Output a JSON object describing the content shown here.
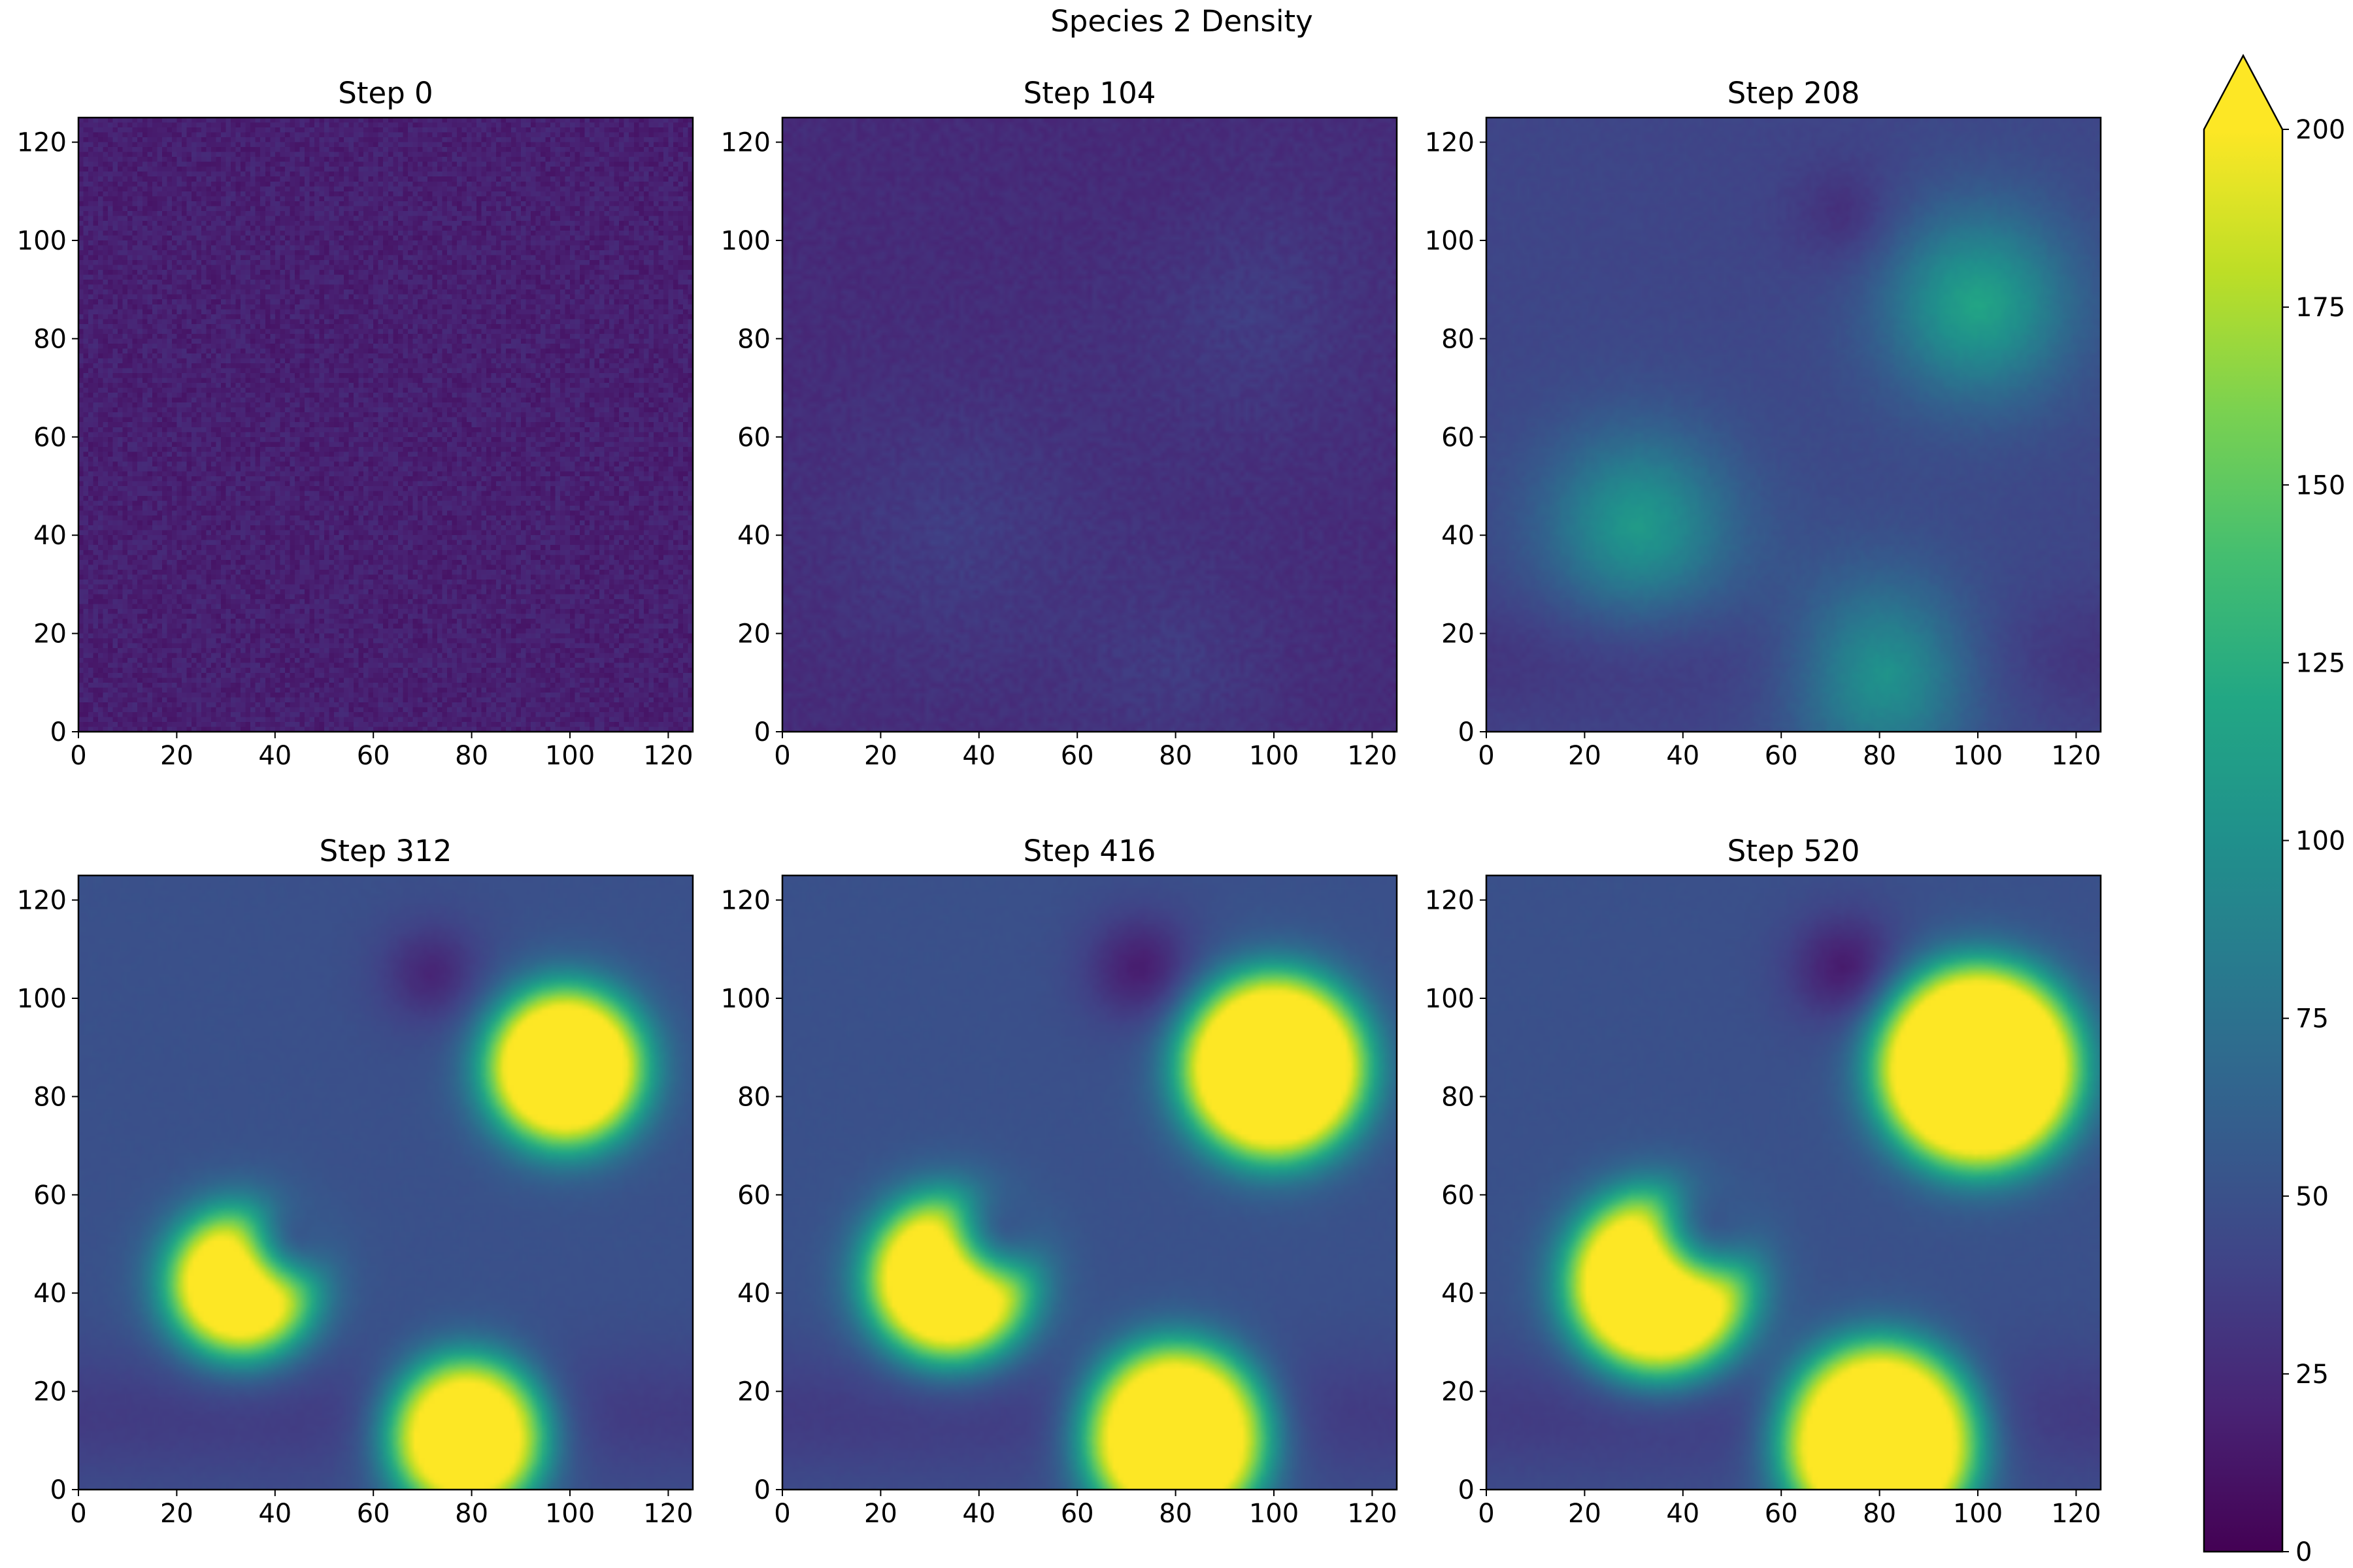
{
  "chart_data": {
    "type": "heatmap",
    "title": "Species 2 Density",
    "colormap": "viridis",
    "colorbar": {
      "min": 0,
      "max": 200,
      "ticks": [
        0,
        25,
        50,
        75,
        100,
        125,
        150,
        175,
        200
      ],
      "extend": "max"
    },
    "grid": false,
    "x_ticks": [
      0,
      20,
      40,
      60,
      80,
      100,
      120
    ],
    "y_ticks": [
      0,
      20,
      40,
      60,
      80,
      100,
      120
    ],
    "xlim": [
      0,
      125
    ],
    "ylim": [
      0,
      125
    ],
    "panels": [
      {
        "title": "Step 0",
        "background": 18,
        "noise": 7,
        "blobs": []
      },
      {
        "title": "Step 104",
        "background": 25,
        "noise": 4,
        "blobs": [
          {
            "cx": 35,
            "cy": 40,
            "r": 16,
            "peak": 40,
            "soft": 12
          },
          {
            "cx": 95,
            "cy": 85,
            "r": 14,
            "peak": 40,
            "soft": 12
          },
          {
            "cx": 80,
            "cy": 12,
            "r": 12,
            "peak": 38,
            "soft": 10
          },
          {
            "cx": 75,
            "cy": 105,
            "r": 10,
            "peak": 22,
            "soft": 8
          }
        ]
      },
      {
        "title": "Step 208",
        "background": 42,
        "noise": 2,
        "bottom_band": 28,
        "blobs": [
          {
            "cx": 100,
            "cy": 87,
            "r": 13,
            "peak": 130,
            "soft": 7
          },
          {
            "cx": 31,
            "cy": 42,
            "r": 13,
            "peak": 120,
            "soft": 7
          },
          {
            "cx": 81,
            "cy": 12,
            "r": 13,
            "peak": 125,
            "soft": 7
          },
          {
            "cx": 73,
            "cy": 105,
            "r": 6,
            "peak": 18,
            "soft": 5
          }
        ]
      },
      {
        "title": "Step 312",
        "background": 50,
        "noise": 1,
        "bottom_band": 32,
        "blobs": [
          {
            "cx": 99,
            "cy": 86,
            "r": 15.5,
            "peak": 250,
            "soft": 3
          },
          {
            "cx": 79,
            "cy": 11,
            "r": 15,
            "peak": 250,
            "soft": 3
          },
          {
            "cx": 33,
            "cy": 42,
            "r": 14,
            "peak": 250,
            "soft": 3,
            "notch": {
              "cx": 45,
              "cy": 52,
              "r": 8
            }
          },
          {
            "cx": 72,
            "cy": 105,
            "r": 7,
            "peak": 15,
            "soft": 4
          }
        ]
      },
      {
        "title": "Step 416",
        "background": 50,
        "noise": 1,
        "bottom_band": 32,
        "blobs": [
          {
            "cx": 100,
            "cy": 86,
            "r": 18.5,
            "peak": 250,
            "soft": 3
          },
          {
            "cx": 80,
            "cy": 11,
            "r": 18,
            "peak": 250,
            "soft": 3
          },
          {
            "cx": 34,
            "cy": 43,
            "r": 16,
            "peak": 250,
            "soft": 3,
            "notch": {
              "cx": 46,
              "cy": 54,
              "r": 9
            }
          },
          {
            "cx": 73,
            "cy": 106,
            "r": 8,
            "peak": 10,
            "soft": 4
          }
        ]
      },
      {
        "title": "Step 520",
        "background": 50,
        "noise": 1,
        "bottom_band": 32,
        "blobs": [
          {
            "cx": 100,
            "cy": 86,
            "r": 20.5,
            "peak": 250,
            "soft": 3
          },
          {
            "cx": 80,
            "cy": 10,
            "r": 19.5,
            "peak": 250,
            "soft": 3
          },
          {
            "cx": 35,
            "cy": 42,
            "r": 18,
            "peak": 250,
            "soft": 3,
            "notch": {
              "cx": 47,
              "cy": 55,
              "r": 10
            }
          },
          {
            "cx": 73,
            "cy": 106,
            "r": 8,
            "peak": 8,
            "soft": 4
          }
        ]
      }
    ]
  }
}
